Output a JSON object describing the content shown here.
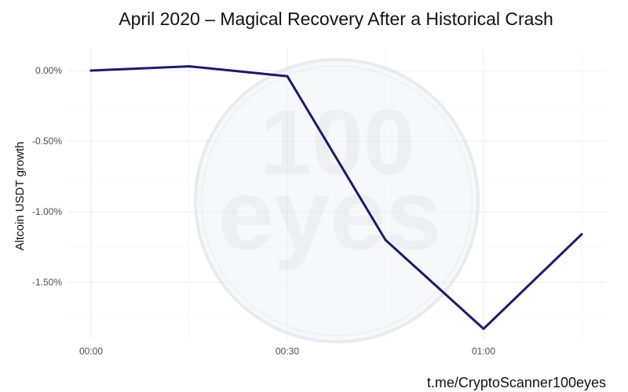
{
  "chart_data": {
    "type": "line",
    "title": "April 2020 – Magical Recovery After a Historical Crash",
    "xlabel": "",
    "ylabel": "Altcoin USDT growth",
    "caption": "t.me/CryptoScanner100eyes",
    "x": [
      "00:00",
      "00:15",
      "00:30",
      "00:45",
      "01:00",
      "01:15"
    ],
    "series": [
      {
        "values": [
          0.0,
          0.03,
          -0.04,
          -1.2,
          -1.83,
          -1.16
        ],
        "color": "#1c1a6b"
      }
    ],
    "x_ticks": [
      "00:00",
      "00:30",
      "01:00"
    ],
    "y_ticks": [
      0.0,
      -0.5,
      -1.0,
      -1.5
    ],
    "y_tick_labels": [
      "0.00%",
      "-0.50%",
      "-1.00%",
      "-1.50%"
    ],
    "ylim": [
      -1.92,
      0.12
    ],
    "grid": true,
    "watermark": {
      "icon": "100eyes-logo",
      "line1": "100",
      "line2": "eyes"
    }
  }
}
